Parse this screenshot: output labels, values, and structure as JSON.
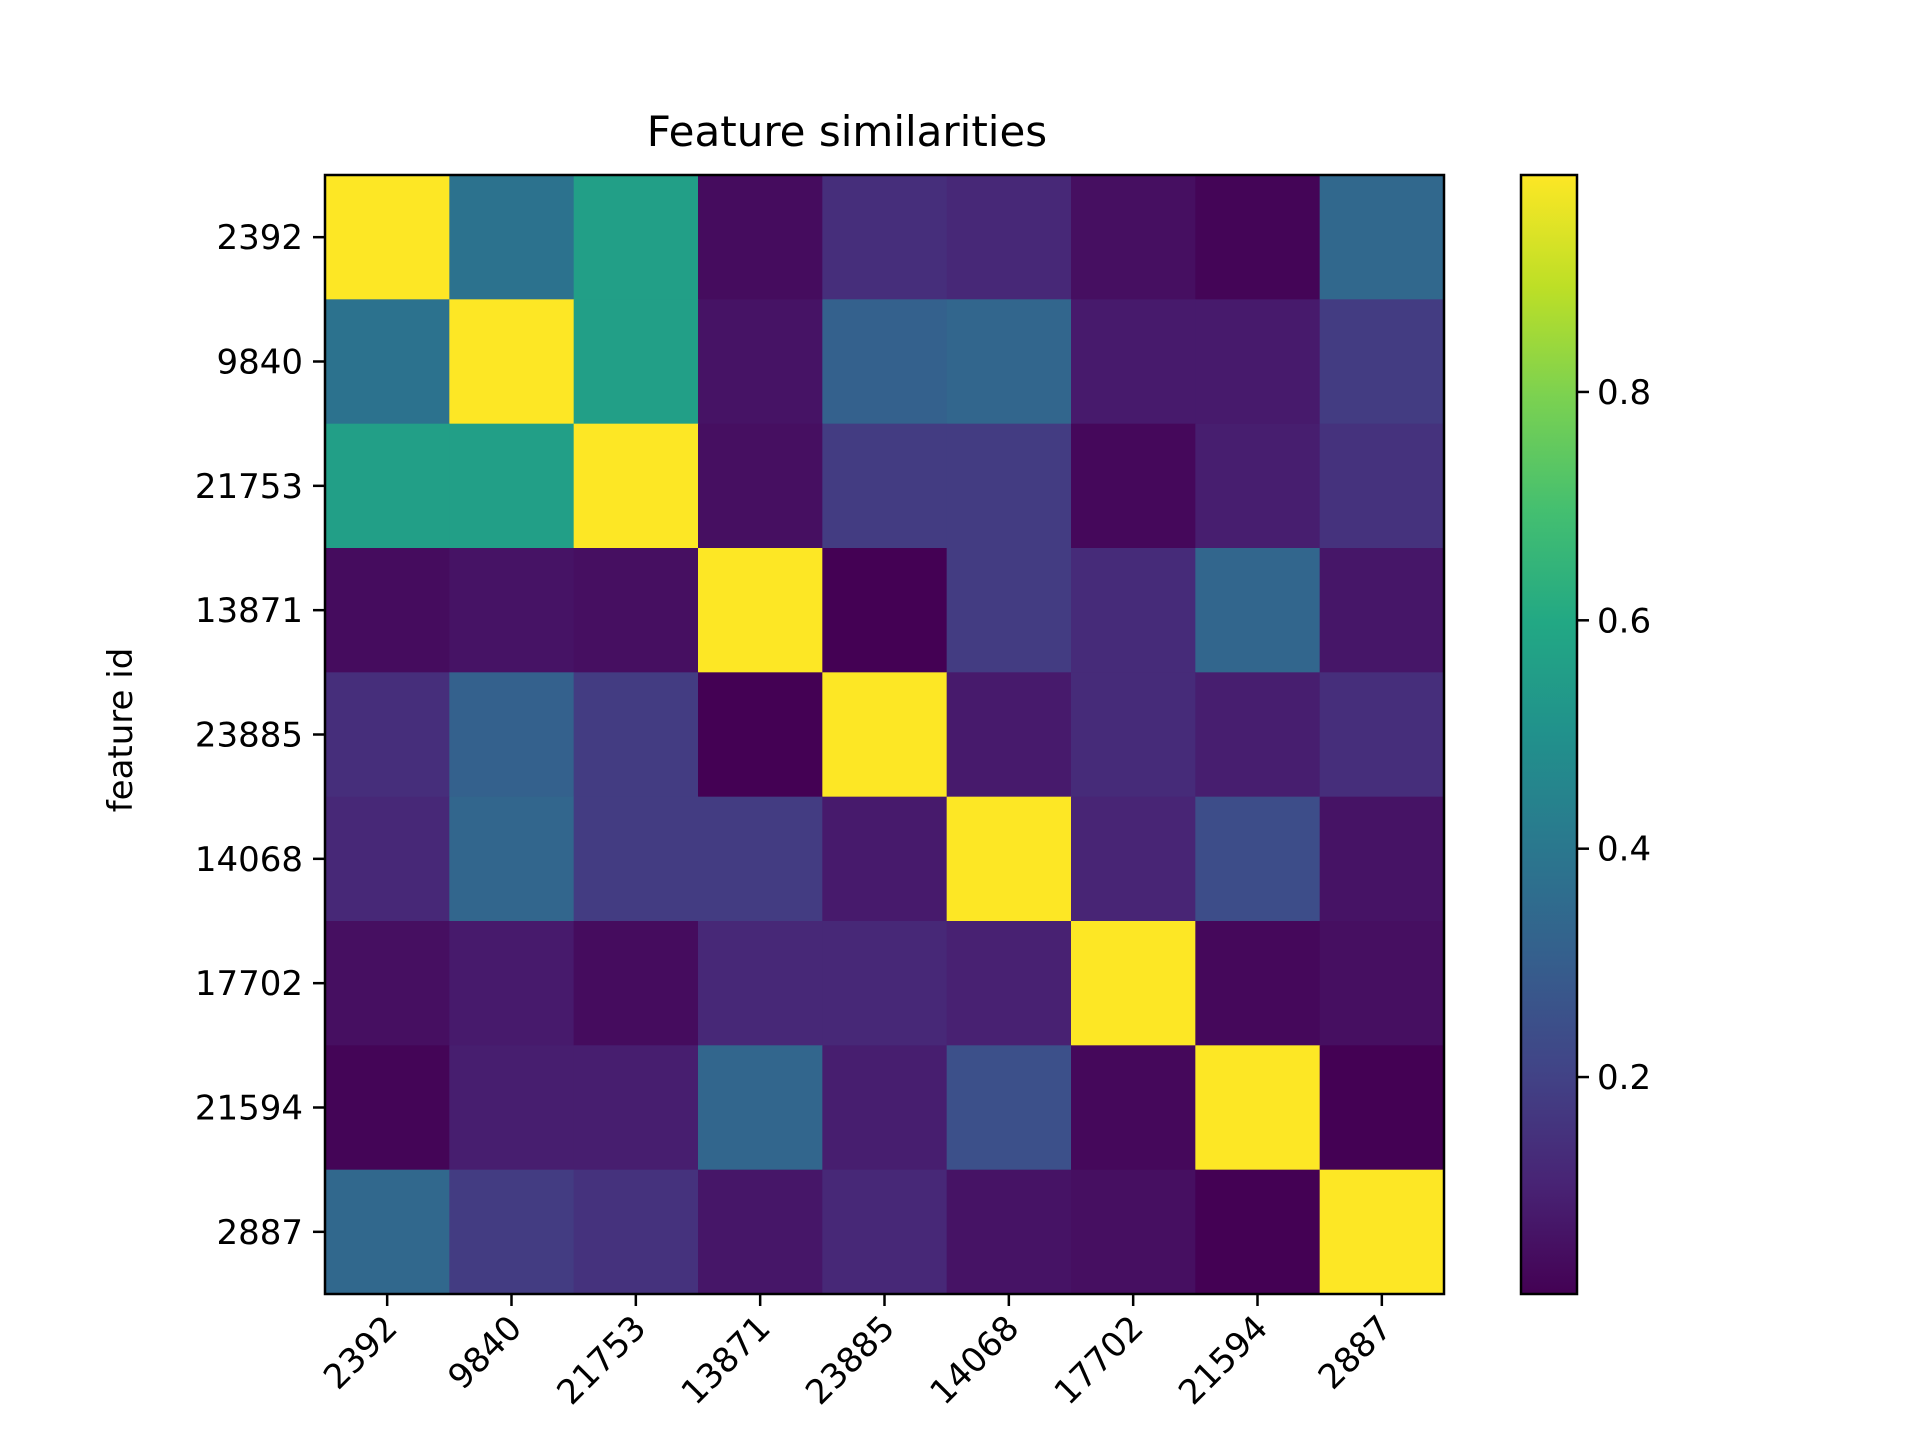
{
  "chart_data": {
    "type": "heatmap",
    "title": "Feature similarities",
    "ylabel": "feature id",
    "xlabel": "",
    "x_categories": [
      "2392",
      "9840",
      "21753",
      "13871",
      "23885",
      "14068",
      "17702",
      "21594",
      "2887"
    ],
    "y_categories": [
      "2392",
      "9840",
      "21753",
      "13871",
      "23885",
      "14068",
      "17702",
      "21594",
      "2887"
    ],
    "values": [
      [
        1.0,
        0.38,
        0.56,
        0.04,
        0.14,
        0.12,
        0.05,
        0.02,
        0.34
      ],
      [
        0.38,
        1.0,
        0.56,
        0.06,
        0.31,
        0.33,
        0.08,
        0.08,
        0.18
      ],
      [
        0.56,
        0.56,
        1.0,
        0.05,
        0.18,
        0.18,
        0.03,
        0.09,
        0.15
      ],
      [
        0.04,
        0.06,
        0.05,
        1.0,
        0.01,
        0.18,
        0.13,
        0.33,
        0.07
      ],
      [
        0.14,
        0.31,
        0.18,
        0.01,
        1.0,
        0.08,
        0.13,
        0.09,
        0.14
      ],
      [
        0.12,
        0.33,
        0.18,
        0.18,
        0.08,
        1.0,
        0.11,
        0.24,
        0.06
      ],
      [
        0.05,
        0.08,
        0.04,
        0.12,
        0.12,
        0.1,
        1.0,
        0.03,
        0.05
      ],
      [
        0.02,
        0.09,
        0.09,
        0.33,
        0.09,
        0.25,
        0.03,
        1.0,
        0.01
      ],
      [
        0.34,
        0.18,
        0.15,
        0.07,
        0.12,
        0.06,
        0.05,
        0.01,
        1.0
      ]
    ],
    "vmin": 0.01,
    "vmax": 0.99,
    "colormap": "viridis",
    "colorbar_ticks": [
      "0.2",
      "0.4",
      "0.6",
      "0.8"
    ],
    "grid": false
  }
}
